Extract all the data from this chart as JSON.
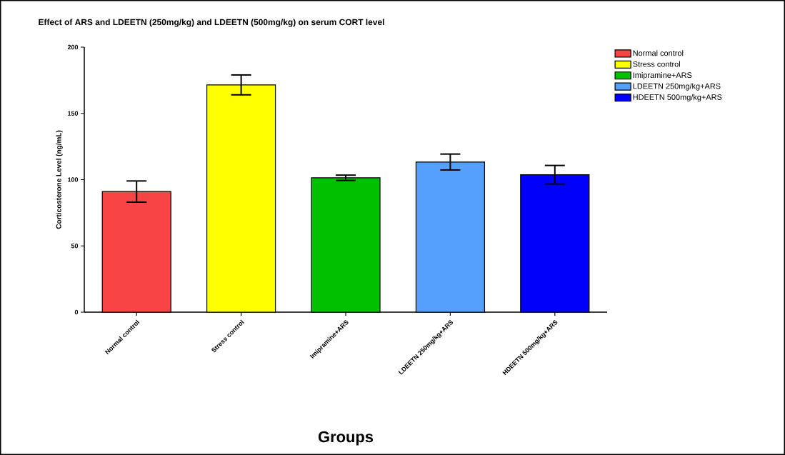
{
  "chart_data": {
    "type": "bar",
    "title": "Effect of ARS and LDEETN (250mg/kg) and LDEETN (500mg/kg) on serum CORT level",
    "xlabel": "Groups",
    "ylabel": "Corticosterone Level (ng/mL)",
    "categories": [
      "Normal control",
      "Stress control",
      "Imipramine+ARS",
      "LDEETN 250mg/kg+ARS",
      "HDEETN 500mg/kg+ARS"
    ],
    "series": [
      {
        "name": "Normal control",
        "color": "#f84444",
        "values": [
          91,
          null,
          null,
          null,
          null
        ],
        "errors": [
          8,
          null,
          null,
          null,
          null
        ]
      },
      {
        "name": "Stress control",
        "color": "#ffff00",
        "values": [
          null,
          171.5,
          null,
          null,
          null
        ],
        "errors": [
          null,
          7.5,
          null,
          null,
          null
        ]
      },
      {
        "name": "Imipramine+ARS",
        "color": "#00c000",
        "values": [
          null,
          null,
          101.4,
          null,
          null
        ],
        "errors": [
          null,
          null,
          2,
          null,
          null
        ]
      },
      {
        "name": "LDEETN 250mg/kg+ARS",
        "color": "#559ffd",
        "values": [
          null,
          null,
          null,
          113.3,
          null
        ],
        "errors": [
          null,
          null,
          null,
          6,
          null
        ]
      },
      {
        "name": "HDEETN 500mg/kg+ARS",
        "color": "#0000fb",
        "values": [
          null,
          null,
          null,
          null,
          103.7
        ],
        "errors": [
          null,
          null,
          null,
          null,
          7
        ]
      }
    ],
    "ylim": [
      0,
      200
    ],
    "yticks": [
      0,
      50,
      100,
      150,
      200
    ],
    "grid": false,
    "legend": "top right"
  }
}
